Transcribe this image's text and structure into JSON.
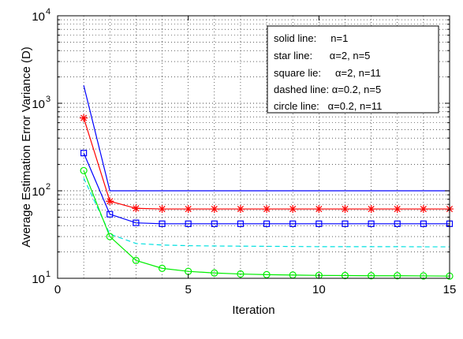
{
  "chart_data": {
    "type": "line",
    "xlabel": "Iteration",
    "ylabel": "Average Estimation Error Variance (D)",
    "xlim": [
      0,
      15
    ],
    "ylim": [
      10,
      10000
    ],
    "yscale": "log",
    "grid": true,
    "legend_position": "top-right",
    "x_ticks": [
      0,
      5,
      10,
      15
    ],
    "y_ticks": [
      {
        "base": "10",
        "exp": "1",
        "value": 10
      },
      {
        "base": "10",
        "exp": "2",
        "value": 100
      },
      {
        "base": "10",
        "exp": "3",
        "value": 1000
      },
      {
        "base": "10",
        "exp": "4",
        "value": 10000
      }
    ],
    "legend": [
      "solid line:     n=1",
      "star line:      α=2, n=5",
      "square lie:     α=2, n=11",
      "dashed line: α=0.2, n=5",
      "circle line:   α=0.2, n=11"
    ],
    "series": [
      {
        "style": "solid",
        "color": "#0000ff",
        "marker": "none",
        "x": [
          1,
          2,
          3,
          4,
          5,
          6,
          7,
          8,
          9,
          10,
          11,
          12,
          13,
          14,
          15
        ],
        "y": [
          1600,
          100,
          100,
          100,
          100,
          100,
          100,
          100,
          100,
          100,
          100,
          100,
          100,
          100,
          100
        ]
      },
      {
        "style": "star",
        "color": "#ff0000",
        "marker": "star",
        "x": [
          1,
          2,
          3,
          4,
          5,
          6,
          7,
          8,
          9,
          10,
          11,
          12,
          13,
          14,
          15
        ],
        "y": [
          680,
          76,
          63,
          62,
          62,
          62,
          62,
          62,
          62,
          62,
          62,
          62,
          62,
          62,
          62
        ]
      },
      {
        "style": "square",
        "color": "#0000ff",
        "marker": "square",
        "x": [
          1,
          2,
          3,
          4,
          5,
          6,
          7,
          8,
          9,
          10,
          11,
          12,
          13,
          14,
          15
        ],
        "y": [
          270,
          54,
          43,
          42,
          42,
          42,
          42,
          42,
          42,
          42,
          42,
          42,
          42,
          42,
          42
        ]
      },
      {
        "style": "dashed",
        "color": "#00e0e0",
        "marker": "none",
        "x": [
          1,
          2,
          3,
          4,
          5,
          6,
          7,
          8,
          9,
          10,
          11,
          12,
          13,
          14,
          15
        ],
        "y": [
          140,
          32,
          25,
          24,
          23.6,
          23.4,
          23.3,
          23.2,
          23.1,
          23,
          23,
          23,
          23,
          22.9,
          22.9
        ]
      },
      {
        "style": "circle",
        "color": "#00ee00",
        "marker": "circle",
        "x": [
          1,
          2,
          3,
          4,
          5,
          6,
          7,
          8,
          9,
          10,
          11,
          12,
          13,
          14,
          15
        ],
        "y": [
          170,
          30,
          16,
          13,
          12,
          11.5,
          11.2,
          11,
          10.9,
          10.8,
          10.75,
          10.7,
          10.7,
          10.65,
          10.6
        ]
      }
    ]
  }
}
